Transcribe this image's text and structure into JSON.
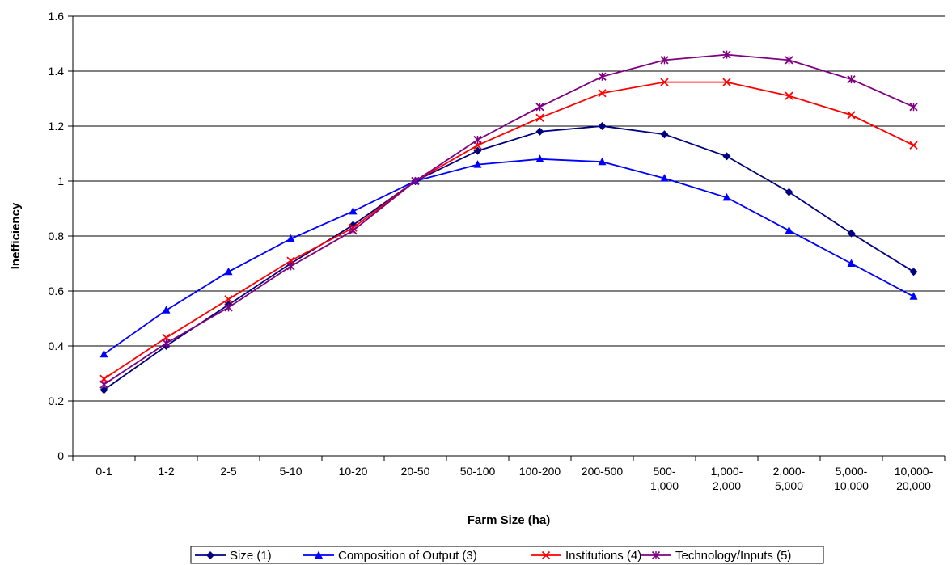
{
  "chart_data": {
    "type": "line",
    "title": "",
    "xlabel": "Farm Size (ha)",
    "ylabel": "Inefficiency",
    "ylim": [
      0,
      1.6
    ],
    "yticks": [
      "0",
      "0.2",
      "0.4",
      "0.6",
      "0.8",
      "1",
      "1.2",
      "1.4",
      "1.6"
    ],
    "grid": true,
    "legend_position": "bottom",
    "categories": [
      [
        "0-1"
      ],
      [
        "1-2"
      ],
      [
        "2-5"
      ],
      [
        "5-10"
      ],
      [
        "10-20"
      ],
      [
        "20-50"
      ],
      [
        "50-100"
      ],
      [
        "100-200"
      ],
      [
        "200-500"
      ],
      [
        "500-",
        "1,000"
      ],
      [
        "1,000-",
        "2,000"
      ],
      [
        "2,000-",
        "5,000"
      ],
      [
        "5,000-",
        "10,000"
      ],
      [
        "10,000-",
        "20,000"
      ]
    ],
    "series": [
      {
        "name": "Size (1)",
        "color": "#000080",
        "marker": "diamond",
        "values": [
          0.24,
          0.4,
          0.55,
          0.7,
          0.84,
          1.0,
          1.11,
          1.18,
          1.2,
          1.17,
          1.09,
          0.96,
          0.81,
          0.67
        ]
      },
      {
        "name": "Composition of Output (3)",
        "color": "#0000FF",
        "marker": "triangle",
        "values": [
          0.37,
          0.53,
          0.67,
          0.79,
          0.89,
          1.0,
          1.06,
          1.08,
          1.07,
          1.01,
          0.94,
          0.82,
          0.7,
          0.58
        ]
      },
      {
        "name": "Institutions (4)",
        "color": "#FF0000",
        "marker": "x",
        "values": [
          0.28,
          0.43,
          0.57,
          0.71,
          0.83,
          1.0,
          1.13,
          1.23,
          1.32,
          1.36,
          1.36,
          1.31,
          1.24,
          1.13
        ]
      },
      {
        "name": "Technology/Inputs (5)",
        "color": "#800080",
        "marker": "star",
        "values": [
          0.26,
          0.41,
          0.54,
          0.69,
          0.82,
          1.0,
          1.15,
          1.27,
          1.38,
          1.44,
          1.46,
          1.44,
          1.37,
          1.27
        ]
      }
    ]
  }
}
